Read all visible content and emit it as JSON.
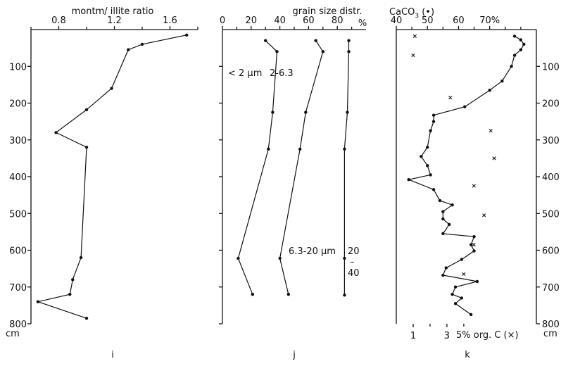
{
  "depth_unit": "cm",
  "depth_ticks": [
    100,
    200,
    300,
    400,
    500,
    600,
    700,
    800
  ],
  "chart_data": [
    {
      "type": "line",
      "id": "i",
      "panel_label": "i",
      "title": "montm/ illite ratio",
      "xlim": [
        0.6,
        1.8
      ],
      "ylim": [
        0,
        800
      ],
      "xticks": [
        0.8,
        1.2,
        1.6
      ],
      "series": [
        {
          "points": [
            {
              "x": 1.72,
              "y": 15
            },
            {
              "x": 1.4,
              "y": 40
            },
            {
              "x": 1.3,
              "y": 55
            },
            {
              "x": 1.18,
              "y": 160
            },
            {
              "x": 1.0,
              "y": 218
            },
            {
              "x": 0.78,
              "y": 280
            },
            {
              "x": 1.0,
              "y": 320
            },
            {
              "x": 0.96,
              "y": 620
            },
            {
              "x": 0.9,
              "y": 680
            },
            {
              "x": 0.88,
              "y": 720
            },
            {
              "x": 0.65,
              "y": 740
            },
            {
              "x": 1.0,
              "y": 785
            }
          ]
        }
      ]
    },
    {
      "type": "line",
      "id": "j",
      "panel_label": "j",
      "title": "grain size distr.",
      "xlim": [
        0,
        100
      ],
      "ylim": [
        0,
        800
      ],
      "xticks": [
        0,
        20,
        40,
        60,
        80
      ],
      "xtick_labels": [
        "0",
        "20",
        "40",
        "60",
        "80"
      ],
      "x_unit": "%",
      "annotations": {
        "fine": "< 2 µm",
        "mid": "2-6.3",
        "coarse": "6.3-20 µm",
        "ann_20": "20",
        "ann_dash": "–",
        "ann_40": "40"
      },
      "series": [
        {
          "points": [
            {
              "x": 30,
              "y": 30
            },
            {
              "x": 38,
              "y": 60
            },
            {
              "x": 35,
              "y": 225
            },
            {
              "x": 32,
              "y": 325
            },
            {
              "x": 11,
              "y": 622
            },
            {
              "x": 21,
              "y": 720
            }
          ]
        },
        {
          "points": [
            {
              "x": 65,
              "y": 30
            },
            {
              "x": 70,
              "y": 60
            },
            {
              "x": 58,
              "y": 225
            },
            {
              "x": 54,
              "y": 325
            },
            {
              "x": 40,
              "y": 622
            },
            {
              "x": 46,
              "y": 720
            }
          ]
        },
        {
          "points": [
            {
              "x": 88,
              "y": 30
            },
            {
              "x": 88,
              "y": 60
            },
            {
              "x": 87,
              "y": 225
            },
            {
              "x": 85,
              "y": 325
            },
            {
              "x": 85,
              "y": 622
            },
            {
              "x": 85,
              "y": 722
            }
          ]
        }
      ]
    },
    {
      "type": "line",
      "id": "k",
      "panel_label": "k",
      "title": "CaCO3 (•)",
      "title_main": "CaCO",
      "title_sub": "3",
      "title_suffix": " (•)",
      "bottom_label": "5% org. C (×)",
      "xlim": [
        40,
        85
      ],
      "ylim": [
        0,
        800
      ],
      "top_ticks": [
        40,
        50,
        60,
        70
      ],
      "top_tick_labels": [
        "40",
        "50",
        "60",
        "70%"
      ],
      "bottom_ticks": [
        1,
        3
      ],
      "bottom_tick_labels": [
        "1",
        "3"
      ],
      "bottom_xlim": [
        0,
        8.3
      ],
      "series": [
        {
          "points": [
            {
              "x": 78,
              "y": 18
            },
            {
              "x": 80,
              "y": 28
            },
            {
              "x": 81,
              "y": 40
            },
            {
              "x": 80,
              "y": 55
            },
            {
              "x": 78,
              "y": 70
            },
            {
              "x": 77,
              "y": 100
            },
            {
              "x": 74,
              "y": 140
            },
            {
              "x": 70,
              "y": 165
            },
            {
              "x": 62,
              "y": 210
            },
            {
              "x": 52,
              "y": 233
            },
            {
              "x": 52,
              "y": 250
            },
            {
              "x": 51,
              "y": 275
            },
            {
              "x": 50,
              "y": 320
            },
            {
              "x": 48,
              "y": 345
            },
            {
              "x": 50,
              "y": 370
            },
            {
              "x": 51,
              "y": 395
            },
            {
              "x": 44,
              "y": 408
            },
            {
              "x": 52,
              "y": 435
            },
            {
              "x": 54,
              "y": 465
            },
            {
              "x": 58,
              "y": 477
            },
            {
              "x": 55,
              "y": 495
            },
            {
              "x": 55,
              "y": 515
            },
            {
              "x": 57,
              "y": 530
            },
            {
              "x": 55,
              "y": 555
            },
            {
              "x": 65,
              "y": 563
            },
            {
              "x": 64,
              "y": 585
            },
            {
              "x": 65,
              "y": 602
            },
            {
              "x": 61,
              "y": 625
            },
            {
              "x": 56,
              "y": 648
            },
            {
              "x": 55,
              "y": 668
            },
            {
              "x": 66,
              "y": 685
            },
            {
              "x": 59,
              "y": 700
            },
            {
              "x": 58,
              "y": 720
            },
            {
              "x": 61,
              "y": 730
            },
            {
              "x": 59,
              "y": 745
            },
            {
              "x": 64,
              "y": 775
            }
          ]
        },
        {
          "x_axis": "bottom",
          "points": [
            {
              "x": 1.1,
              "y": 18
            },
            {
              "x": 1.0,
              "y": 70
            },
            {
              "x": 3.2,
              "y": 185
            },
            {
              "x": 5.6,
              "y": 275
            },
            {
              "x": 5.8,
              "y": 350
            },
            {
              "x": 4.6,
              "y": 425
            },
            {
              "x": 5.2,
              "y": 505
            },
            {
              "x": 4.6,
              "y": 585
            },
            {
              "x": 4.0,
              "y": 665
            }
          ]
        }
      ]
    }
  ]
}
